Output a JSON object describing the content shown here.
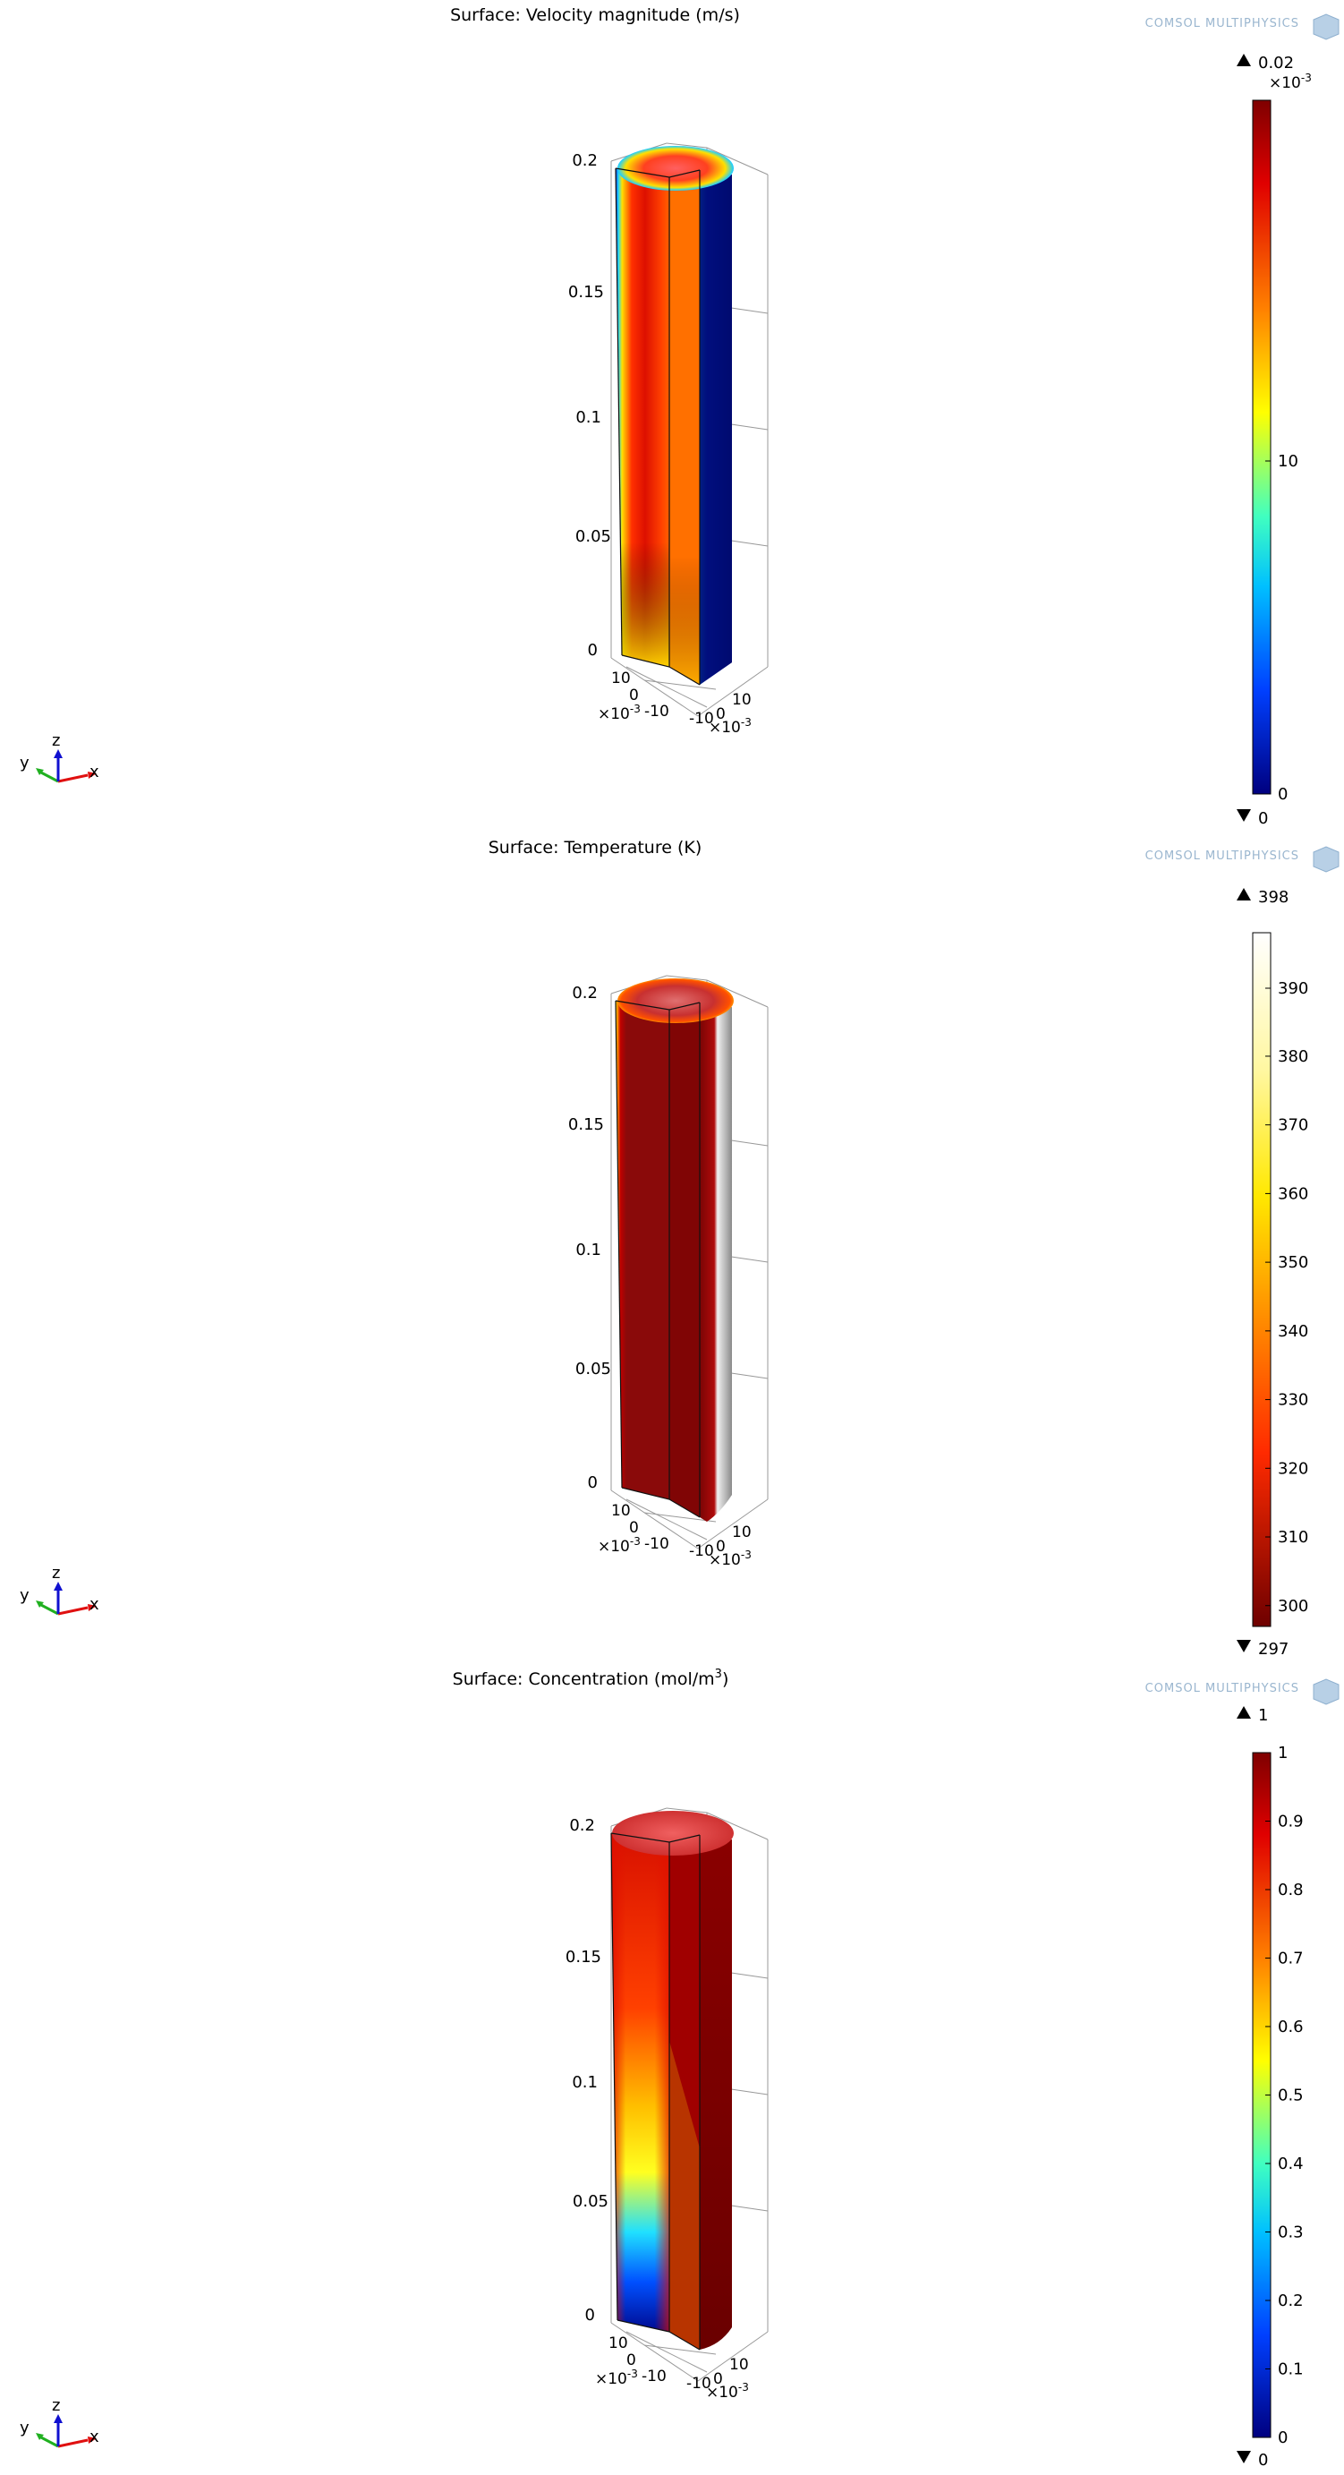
{
  "watermark": "COMSOL MULTIPHYSICS",
  "axis_triad": {
    "x": "x",
    "y": "y",
    "z": "z"
  },
  "panels": [
    {
      "title": "Surface: Velocity magnitude (m/s)",
      "title_sup": "",
      "z_ticks": [
        "0.2",
        "0.15",
        "0.1",
        "0.05",
        "0"
      ],
      "left_ticks": [
        "10",
        "0",
        "-10"
      ],
      "right_ticks": [
        "10",
        "0",
        "-10"
      ],
      "axis_exp": "×10",
      "axis_exp_sup": "-3",
      "cb_max": "0.02",
      "cb_min": "0",
      "cb_mult": "×10",
      "cb_mult_sup": "-3",
      "cb_ticks": [
        {
          "label": "10",
          "frac": 0.52
        },
        {
          "label": "0",
          "frac": 1.0
        }
      ]
    },
    {
      "title": "Surface: Temperature (K)",
      "title_sup": "",
      "z_ticks": [
        "0.2",
        "0.15",
        "0.1",
        "0.05",
        "0"
      ],
      "left_ticks": [
        "10",
        "0",
        "-10"
      ],
      "right_ticks": [
        "10",
        "0",
        "-10"
      ],
      "axis_exp": "×10",
      "axis_exp_sup": "-3",
      "cb_max": "398",
      "cb_min": "297",
      "cb_mult": "",
      "cb_mult_sup": "",
      "cb_ticks": [
        {
          "label": "390",
          "frac": 0.08
        },
        {
          "label": "380",
          "frac": 0.178
        },
        {
          "label": "370",
          "frac": 0.277
        },
        {
          "label": "360",
          "frac": 0.376
        },
        {
          "label": "350",
          "frac": 0.475
        },
        {
          "label": "340",
          "frac": 0.574
        },
        {
          "label": "330",
          "frac": 0.673
        },
        {
          "label": "320",
          "frac": 0.772
        },
        {
          "label": "310",
          "frac": 0.871
        },
        {
          "label": "300",
          "frac": 0.97
        }
      ]
    },
    {
      "title": "Surface: Concentration (mol/m",
      "title_sup": "3",
      "title_end": ")",
      "z_ticks": [
        "0.2",
        "0.15",
        "0.1",
        "0.05",
        "0"
      ],
      "left_ticks": [
        "10",
        "0",
        "-10"
      ],
      "right_ticks": [
        "10",
        "0",
        "-10"
      ],
      "axis_exp": "×10",
      "axis_exp_sup": "-3",
      "cb_max": "1",
      "cb_min": "0",
      "cb_mult": "",
      "cb_mult_sup": "",
      "cb_ticks": [
        {
          "label": "1",
          "frac": 0.0
        },
        {
          "label": "0.9",
          "frac": 0.1
        },
        {
          "label": "0.8",
          "frac": 0.2
        },
        {
          "label": "0.7",
          "frac": 0.3
        },
        {
          "label": "0.6",
          "frac": 0.4
        },
        {
          "label": "0.5",
          "frac": 0.5
        },
        {
          "label": "0.4",
          "frac": 0.6
        },
        {
          "label": "0.3",
          "frac": 0.7
        },
        {
          "label": "0.2",
          "frac": 0.8
        },
        {
          "label": "0.1",
          "frac": 0.9
        },
        {
          "label": "0",
          "frac": 1.0
        }
      ]
    }
  ]
}
